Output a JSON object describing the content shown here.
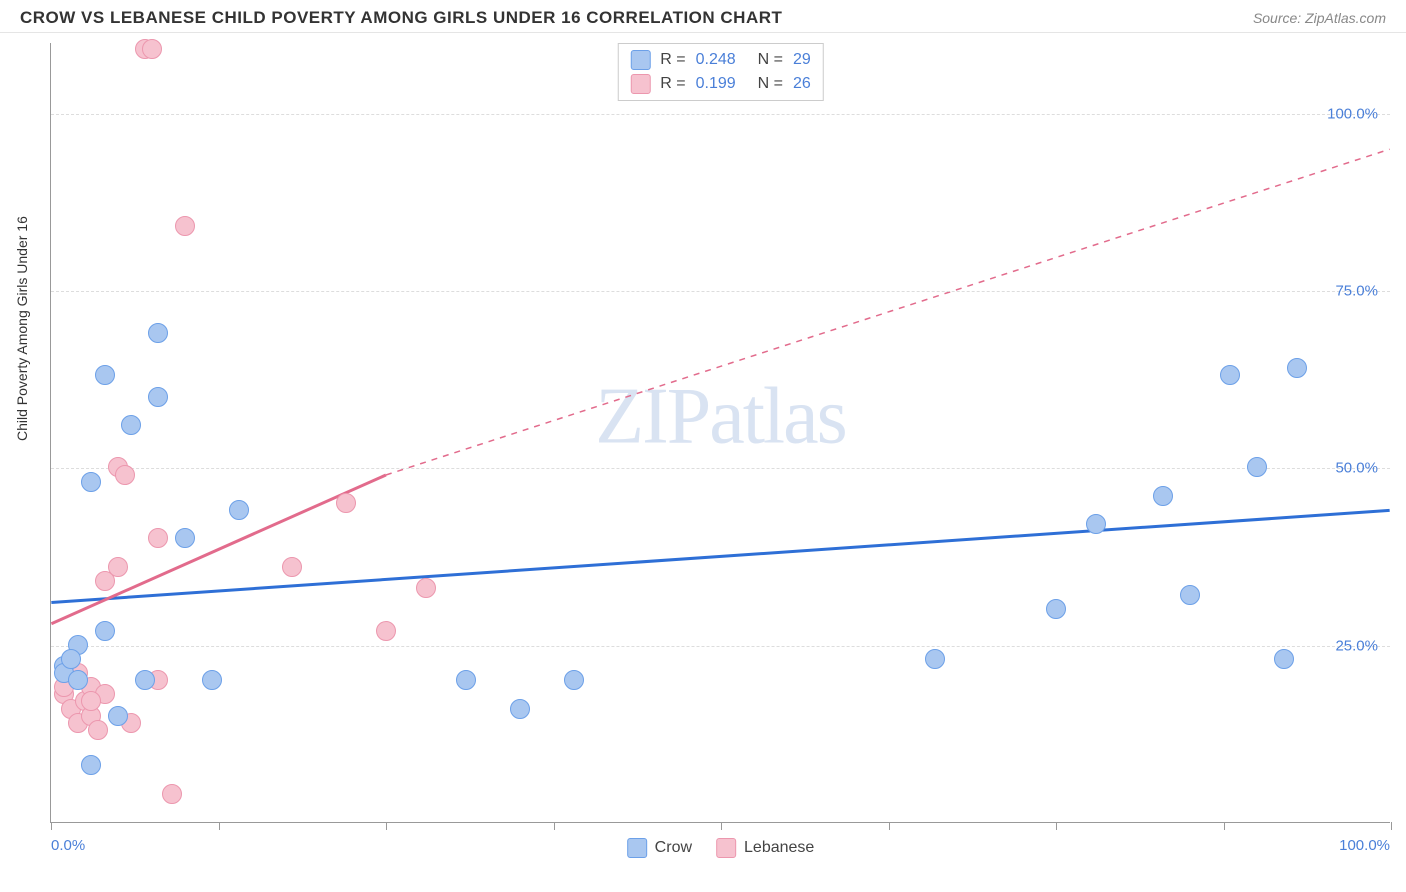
{
  "header": {
    "title": "CROW VS LEBANESE CHILD POVERTY AMONG GIRLS UNDER 16 CORRELATION CHART",
    "source_prefix": "Source: ",
    "source": "ZipAtlas.com"
  },
  "chart": {
    "type": "scatter",
    "watermark": "ZIPatlas",
    "y_axis_label": "Child Poverty Among Girls Under 16",
    "xlim": [
      0,
      100
    ],
    "ylim": [
      0,
      110
    ],
    "x_tick_positions": [
      0,
      12.5,
      25,
      37.5,
      50,
      62.5,
      75,
      87.5,
      100
    ],
    "x_tick_labels": {
      "0": "0.0%",
      "100": "100.0%"
    },
    "y_grid_positions": [
      25,
      50,
      75,
      100
    ],
    "y_tick_labels": {
      "25": "25.0%",
      "50": "50.0%",
      "75": "75.0%",
      "100": "100.0%"
    },
    "background_color": "#ffffff",
    "grid_color": "#dddddd",
    "axis_color": "#999999",
    "label_color": "#4a7fd8",
    "marker_radius": 10,
    "marker_fill_opacity": 0.35,
    "marker_stroke_width": 1.5,
    "series": {
      "crow": {
        "label": "Crow",
        "fill_color": "#a9c7f0",
        "stroke_color": "#6ca0e8",
        "trend_color": "#2e6fd6",
        "trend_solid": {
          "x1": 0,
          "y1": 31,
          "x2": 100,
          "y2": 44
        },
        "R": "0.248",
        "N": "29",
        "points": [
          {
            "x": 1,
            "y": 22
          },
          {
            "x": 1,
            "y": 21
          },
          {
            "x": 2,
            "y": 25
          },
          {
            "x": 3,
            "y": 8
          },
          {
            "x": 3,
            "y": 48
          },
          {
            "x": 4,
            "y": 63
          },
          {
            "x": 4,
            "y": 27
          },
          {
            "x": 5,
            "y": 15
          },
          {
            "x": 6,
            "y": 56
          },
          {
            "x": 7,
            "y": 20
          },
          {
            "x": 8,
            "y": 60
          },
          {
            "x": 8,
            "y": 69
          },
          {
            "x": 10,
            "y": 40
          },
          {
            "x": 12,
            "y": 20
          },
          {
            "x": 14,
            "y": 44
          },
          {
            "x": 31,
            "y": 20
          },
          {
            "x": 35,
            "y": 16
          },
          {
            "x": 39,
            "y": 20
          },
          {
            "x": 66,
            "y": 23
          },
          {
            "x": 75,
            "y": 30
          },
          {
            "x": 78,
            "y": 42
          },
          {
            "x": 83,
            "y": 46
          },
          {
            "x": 85,
            "y": 32
          },
          {
            "x": 88,
            "y": 63
          },
          {
            "x": 90,
            "y": 50
          },
          {
            "x": 92,
            "y": 23
          },
          {
            "x": 93,
            "y": 64
          },
          {
            "x": 2,
            "y": 20
          },
          {
            "x": 1.5,
            "y": 23
          }
        ]
      },
      "lebanese": {
        "label": "Lebanese",
        "fill_color": "#f6c2cf",
        "stroke_color": "#ec97ae",
        "trend_color": "#e26b8c",
        "trend_solid": {
          "x1": 0,
          "y1": 28,
          "x2": 25,
          "y2": 49
        },
        "trend_dashed": {
          "x1": 25,
          "y1": 49,
          "x2": 100,
          "y2": 95
        },
        "R": "0.199",
        "N": "26",
        "points": [
          {
            "x": 1,
            "y": 18
          },
          {
            "x": 1.5,
            "y": 16
          },
          {
            "x": 2,
            "y": 14
          },
          {
            "x": 2.5,
            "y": 17
          },
          {
            "x": 3,
            "y": 19
          },
          {
            "x": 3,
            "y": 15
          },
          {
            "x": 3.5,
            "y": 13
          },
          {
            "x": 4,
            "y": 18
          },
          {
            "x": 4,
            "y": 34
          },
          {
            "x": 5,
            "y": 36
          },
          {
            "x": 5,
            "y": 50
          },
          {
            "x": 5.5,
            "y": 49
          },
          {
            "x": 6,
            "y": 14
          },
          {
            "x": 7,
            "y": 109
          },
          {
            "x": 7.5,
            "y": 109
          },
          {
            "x": 8,
            "y": 40
          },
          {
            "x": 8,
            "y": 20
          },
          {
            "x": 9,
            "y": 4
          },
          {
            "x": 10,
            "y": 84
          },
          {
            "x": 18,
            "y": 36
          },
          {
            "x": 22,
            "y": 45
          },
          {
            "x": 25,
            "y": 27
          },
          {
            "x": 28,
            "y": 33
          },
          {
            "x": 1,
            "y": 19
          },
          {
            "x": 2,
            "y": 21
          },
          {
            "x": 3,
            "y": 17
          }
        ]
      }
    },
    "legend_bottom": [
      {
        "key": "crow"
      },
      {
        "key": "lebanese"
      }
    ],
    "stats_legend": [
      {
        "key": "crow"
      },
      {
        "key": "lebanese"
      }
    ]
  }
}
